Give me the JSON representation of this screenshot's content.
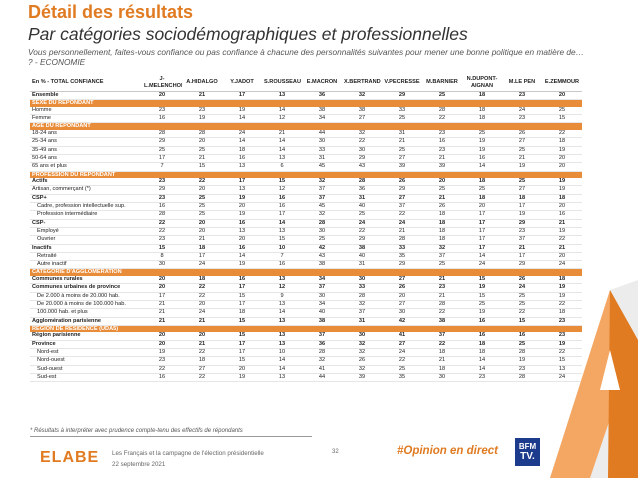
{
  "header": {
    "title": "Détail des résultats",
    "subtitle": "Par catégories sociodémographiques et professionnelles",
    "question": "Vous personnellement, faites-vous confiance ou pas confiance à chacune des personnalités suivantes pour mener une bonne politique en matière de… ? - ECONOMIE"
  },
  "table": {
    "corner": "En % - TOTAL CONFIANCE",
    "columns": [
      "J-L.MELENCHON",
      "A.HIDALGO",
      "Y.JADOT",
      "S.ROUSSEAU",
      "E.MACRON",
      "X.BERTRAND",
      "V.PECRESSE",
      "M.BARNIER",
      "N.DUPONT-AIGNAN",
      "M.LE PEN",
      "E.ZEMMOUR"
    ],
    "rows": [
      {
        "label": "Ensemble",
        "type": "bold",
        "values": [
          "20",
          "21",
          "17",
          "13",
          "36",
          "32",
          "29",
          "25",
          "18",
          "23",
          "20"
        ]
      },
      {
        "label": "SEXE DU REPONDANT",
        "type": "section"
      },
      {
        "label": "Homme",
        "type": "normal",
        "values": [
          "23",
          "23",
          "19",
          "14",
          "38",
          "38",
          "33",
          "28",
          "18",
          "24",
          "25"
        ]
      },
      {
        "label": "Femme",
        "type": "normal",
        "values": [
          "16",
          "19",
          "14",
          "12",
          "34",
          "27",
          "25",
          "22",
          "18",
          "23",
          "15"
        ]
      },
      {
        "label": "AGE DU REPONDANT",
        "type": "section"
      },
      {
        "label": "18-24 ans",
        "type": "normal",
        "values": [
          "28",
          "28",
          "24",
          "21",
          "44",
          "32",
          "31",
          "23",
          "25",
          "26",
          "22"
        ]
      },
      {
        "label": "25-34 ans",
        "type": "normal",
        "values": [
          "29",
          "20",
          "14",
          "14",
          "30",
          "22",
          "21",
          "16",
          "19",
          "27",
          "18"
        ]
      },
      {
        "label": "35-49 ans",
        "type": "normal",
        "values": [
          "25",
          "25",
          "18",
          "14",
          "33",
          "30",
          "25",
          "23",
          "19",
          "25",
          "19"
        ]
      },
      {
        "label": "50-64 ans",
        "type": "normal",
        "values": [
          "17",
          "21",
          "16",
          "13",
          "31",
          "29",
          "27",
          "21",
          "16",
          "21",
          "20"
        ]
      },
      {
        "label": "65 ans et plus",
        "type": "normal",
        "values": [
          "7",
          "15",
          "13",
          "6",
          "45",
          "43",
          "39",
          "39",
          "14",
          "19",
          "20"
        ]
      },
      {
        "label": "PROFESSION DU REPONDANT",
        "type": "section"
      },
      {
        "label": "Actifs",
        "type": "bold",
        "values": [
          "23",
          "22",
          "17",
          "15",
          "32",
          "28",
          "26",
          "20",
          "18",
          "25",
          "19"
        ]
      },
      {
        "label": "Artisan, commerçant (*)",
        "type": "normal",
        "values": [
          "29",
          "20",
          "13",
          "12",
          "37",
          "36",
          "29",
          "25",
          "25",
          "27",
          "19"
        ]
      },
      {
        "label": "CSP+",
        "type": "bold",
        "values": [
          "23",
          "25",
          "19",
          "16",
          "37",
          "31",
          "27",
          "21",
          "18",
          "18",
          "18"
        ]
      },
      {
        "label": "Cadre, profession intellectuelle sup.",
        "type": "indent",
        "values": [
          "16",
          "25",
          "20",
          "16",
          "45",
          "40",
          "37",
          "26",
          "20",
          "17",
          "20"
        ]
      },
      {
        "label": "Profession intermédiaire",
        "type": "indent",
        "values": [
          "28",
          "25",
          "19",
          "17",
          "32",
          "25",
          "22",
          "18",
          "17",
          "19",
          "16"
        ]
      },
      {
        "label": "CSP-",
        "type": "bold",
        "values": [
          "22",
          "20",
          "16",
          "14",
          "28",
          "24",
          "24",
          "18",
          "17",
          "29",
          "21"
        ]
      },
      {
        "label": "Employé",
        "type": "indent",
        "values": [
          "22",
          "20",
          "13",
          "13",
          "30",
          "22",
          "21",
          "18",
          "17",
          "23",
          "19"
        ]
      },
      {
        "label": "Ouvrier",
        "type": "indent",
        "values": [
          "23",
          "21",
          "20",
          "15",
          "25",
          "29",
          "28",
          "18",
          "17",
          "37",
          "22"
        ]
      },
      {
        "label": "Inactifs",
        "type": "bold",
        "values": [
          "15",
          "18",
          "16",
          "10",
          "42",
          "38",
          "33",
          "32",
          "17",
          "21",
          "21"
        ]
      },
      {
        "label": "Retraité",
        "type": "indent",
        "values": [
          "8",
          "17",
          "14",
          "7",
          "43",
          "40",
          "35",
          "37",
          "14",
          "17",
          "20"
        ]
      },
      {
        "label": "Autre inactif",
        "type": "indent",
        "values": [
          "30",
          "24",
          "19",
          "16",
          "38",
          "31",
          "29",
          "25",
          "24",
          "29",
          "24"
        ]
      },
      {
        "label": "CATEGORIE D'AGGLOMERATION",
        "type": "section"
      },
      {
        "label": "Communes rurales",
        "type": "bold",
        "values": [
          "20",
          "18",
          "16",
          "13",
          "34",
          "30",
          "27",
          "21",
          "15",
          "26",
          "18"
        ]
      },
      {
        "label": "Communes urbaines de province",
        "type": "bold",
        "values": [
          "20",
          "22",
          "17",
          "12",
          "37",
          "33",
          "26",
          "23",
          "19",
          "24",
          "19"
        ]
      },
      {
        "label": "De 2.000 à moins de 20.000 hab.",
        "type": "indent",
        "values": [
          "17",
          "22",
          "15",
          "9",
          "30",
          "28",
          "20",
          "21",
          "15",
          "25",
          "19"
        ]
      },
      {
        "label": "De 20.000 à moins de 100.000 hab.",
        "type": "indent",
        "values": [
          "21",
          "20",
          "17",
          "13",
          "34",
          "32",
          "27",
          "28",
          "25",
          "25",
          "22"
        ]
      },
      {
        "label": "100.000 hab. et plus",
        "type": "indent",
        "values": [
          "21",
          "24",
          "18",
          "14",
          "40",
          "37",
          "30",
          "22",
          "19",
          "22",
          "18"
        ]
      },
      {
        "label": "Agglomération parisienne",
        "type": "bold",
        "values": [
          "21",
          "21",
          "15",
          "13",
          "38",
          "31",
          "42",
          "38",
          "16",
          "15",
          "23"
        ]
      },
      {
        "label": "REGION DE RESIDENCE (UDA5)",
        "type": "section"
      },
      {
        "label": "Région parisienne",
        "type": "bold",
        "values": [
          "20",
          "20",
          "15",
          "13",
          "37",
          "30",
          "41",
          "37",
          "16",
          "16",
          "23"
        ]
      },
      {
        "label": "Province",
        "type": "bold",
        "values": [
          "20",
          "21",
          "17",
          "13",
          "36",
          "32",
          "27",
          "22",
          "18",
          "25",
          "19"
        ]
      },
      {
        "label": "Nord-est",
        "type": "indent",
        "values": [
          "19",
          "22",
          "17",
          "10",
          "28",
          "32",
          "24",
          "18",
          "18",
          "28",
          "22"
        ]
      },
      {
        "label": "Nord-ouest",
        "type": "indent",
        "values": [
          "23",
          "18",
          "15",
          "14",
          "32",
          "26",
          "22",
          "21",
          "14",
          "19",
          "15"
        ]
      },
      {
        "label": "Sud-ouest",
        "type": "indent",
        "values": [
          "22",
          "27",
          "20",
          "14",
          "41",
          "32",
          "25",
          "18",
          "14",
          "23",
          "13"
        ]
      },
      {
        "label": "Sud-est",
        "type": "indent",
        "values": [
          "16",
          "22",
          "19",
          "13",
          "44",
          "39",
          "35",
          "30",
          "23",
          "28",
          "24"
        ]
      }
    ]
  },
  "footer": {
    "footnote": "* Résultats à interpréter avec prudence compte-tenu des effectifs de répondants",
    "logo": "ELABE",
    "report_title": "Les Français et la campagne de l'élection présidentielle",
    "date": "22 septembre 2021",
    "page_number": "32",
    "hashtag": "#Opinion en direct",
    "partner_logo": [
      "BFM",
      "TV."
    ]
  },
  "colors": {
    "accent": "#e07b22",
    "section_band": "#e98c3a",
    "logo_blue": "#1d3b8c"
  }
}
